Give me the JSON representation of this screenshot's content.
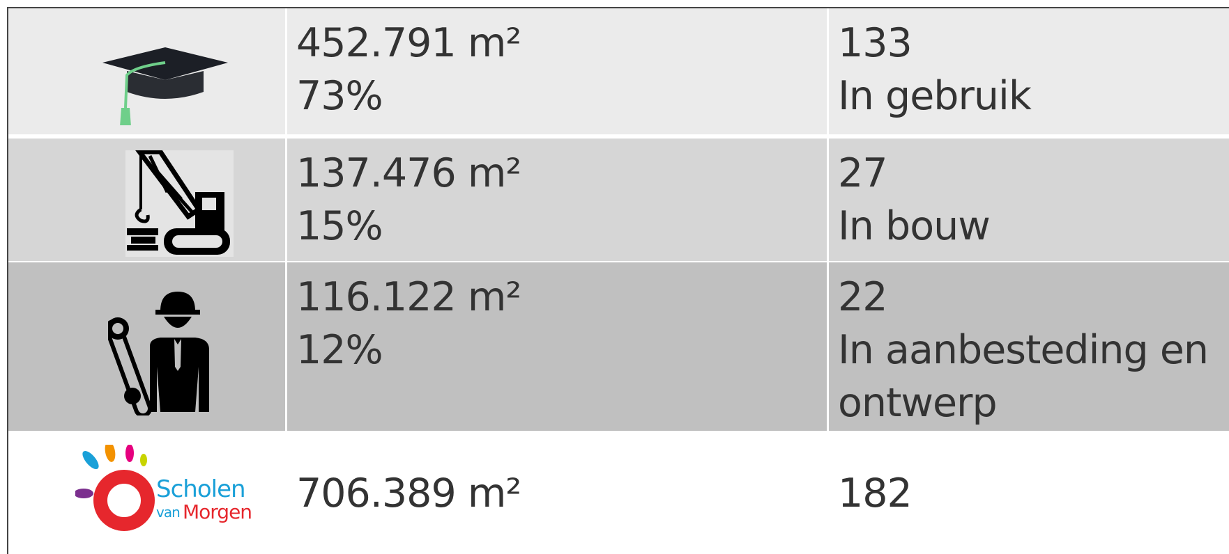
{
  "rows": [
    {
      "area": "452.791 m²",
      "share": "73%",
      "count": "133",
      "status": "In gebruik"
    },
    {
      "area": "137.476 m²",
      "share": "15%",
      "count": "27",
      "status": "In bouw"
    },
    {
      "area": "116.122 m²",
      "share": "12%",
      "count": "22",
      "status": "In aanbesteding en ontwerp"
    }
  ],
  "total": {
    "area": "706.389 m²",
    "count": "182"
  },
  "logo": {
    "name": "Scholen",
    "prefix": "van",
    "suffix": "Morgen"
  }
}
